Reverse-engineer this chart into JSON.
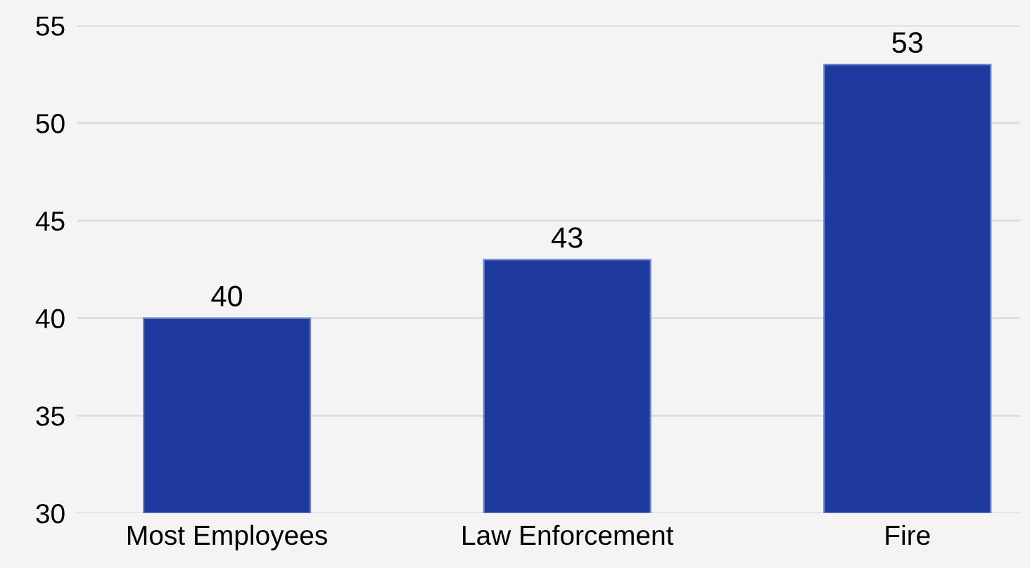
{
  "chart_data": {
    "type": "bar",
    "categories": [
      "Most Employees",
      "Law Enforcement",
      "Fire"
    ],
    "values": [
      40,
      43,
      53
    ],
    "color": "#1f3a9e",
    "ylim": [
      30,
      55
    ],
    "yticks": [
      30,
      35,
      40,
      45,
      50,
      55
    ],
    "grid": "y",
    "data_labels": true
  }
}
